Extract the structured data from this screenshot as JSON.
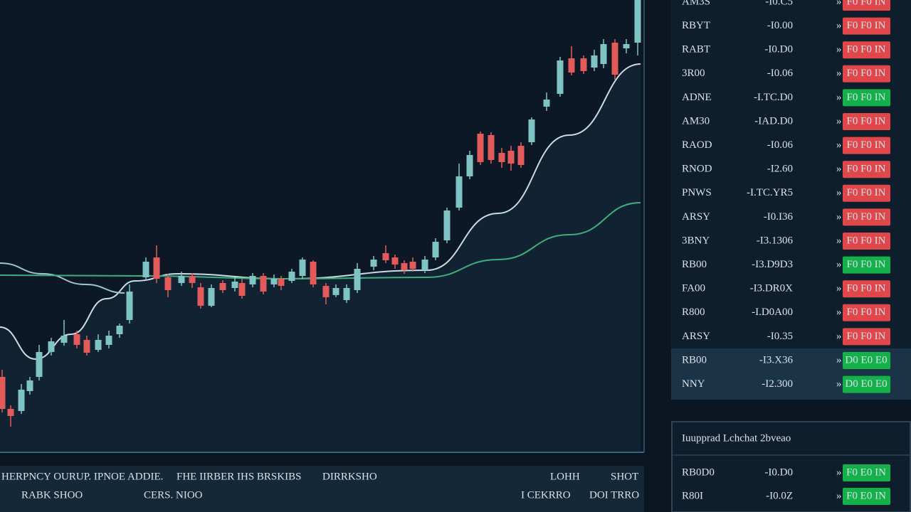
{
  "chart_data": {
    "type": "candlestick",
    "xlim": [
      0,
      905
    ],
    "ylim": [
      0,
      636
    ],
    "up_color": "#7fc3c4",
    "down_color": "#e25a5a",
    "x": [
      3,
      15,
      30,
      42,
      55,
      72,
      90,
      108,
      122,
      138,
      153,
      168,
      182,
      205,
      220,
      236,
      255,
      270,
      282,
      297,
      313,
      330,
      340,
      355,
      370,
      385,
      395,
      410,
      425,
      440,
      458,
      472,
      487,
      502,
      525,
      542,
      555,
      568,
      580,
      597,
      612,
      628,
      645,
      660,
      675,
      690,
      705,
      718,
      732,
      747,
      768,
      787,
      803,
      820,
      835,
      848,
      864,
      880,
      896
    ],
    "open": [
      106,
      61,
      58,
      86,
      106,
      141,
      154,
      166,
      158,
      144,
      151,
      166,
      186,
      246,
      274,
      246,
      238,
      248,
      232,
      206,
      238,
      231,
      238,
      236,
      248,
      236,
      244,
      241,
      248,
      268,
      234,
      221,
      214,
      228,
      261,
      280,
      274,
      266,
      268,
      256,
      274,
      298,
      344,
      388,
      448,
      446,
      421,
      424,
      431,
      436,
      486,
      504,
      554,
      554,
      541,
      546,
      576,
      568,
      576
    ],
    "close": [
      61,
      51,
      88,
      101,
      141,
      156,
      164,
      151,
      140,
      158,
      164,
      178,
      226,
      268,
      244,
      228,
      248,
      238,
      206,
      231,
      228,
      240,
      220,
      248,
      226,
      244,
      234,
      254,
      271,
      236,
      218,
      231,
      231,
      258,
      271,
      270,
      264,
      256,
      258,
      271,
      296,
      340,
      388,
      418,
      408,
      411,
      408,
      406,
      404,
      468,
      496,
      551,
      534,
      536,
      558,
      574,
      531,
      574,
      636
    ],
    "high": [
      116,
      66,
      96,
      106,
      151,
      161,
      186,
      171,
      164,
      166,
      171,
      181,
      236,
      274,
      291,
      251,
      254,
      252,
      238,
      236,
      242,
      246,
      244,
      252,
      252,
      250,
      248,
      258,
      274,
      270,
      238,
      236,
      236,
      266,
      276,
      291,
      278,
      270,
      274,
      276,
      301,
      344,
      406,
      424,
      451,
      450,
      428,
      431,
      436,
      471,
      506,
      556,
      571,
      558,
      566,
      581,
      581,
      581,
      636
    ],
    "low": [
      56,
      36,
      54,
      81,
      101,
      136,
      150,
      146,
      136,
      141,
      146,
      161,
      181,
      242,
      238,
      218,
      234,
      231,
      202,
      204,
      224,
      226,
      216,
      232,
      222,
      232,
      228,
      238,
      244,
      232,
      208,
      218,
      210,
      224,
      256,
      266,
      258,
      251,
      254,
      252,
      270,
      294,
      340,
      384,
      404,
      406,
      400,
      396,
      400,
      432,
      480,
      500,
      530,
      532,
      536,
      540,
      524,
      561,
      558
    ],
    "series": [
      {
        "color": "#c9dbe3",
        "x": [
          0,
          50,
          100,
          150,
          190,
          250,
          400,
          600,
          700,
          800,
          900
        ],
        "values": [
          176,
          131,
          166,
          216,
          241,
          251,
          244,
          256,
          336,
          446,
          546
        ]
      },
      {
        "color": "#9fc4cf",
        "x": [
          0,
          60,
          120,
          175
        ],
        "values": [
          266,
          251,
          236,
          224
        ]
      },
      {
        "color": "#3fae7a",
        "x": [
          0,
          200,
          400,
          600,
          700,
          800,
          900
        ],
        "values": [
          249,
          248,
          244,
          246,
          271,
          306,
          351
        ]
      }
    ]
  },
  "watchlist": {
    "rows": [
      {
        "symbol": "AM3S",
        "value": "-I0.C5",
        "value_color": "#d9e2ea",
        "button": "F0 F0 IN",
        "button_color": "#e0474a"
      },
      {
        "symbol": "RBYT",
        "value": "-I0.00",
        "value_color": "#d9e2ea",
        "button": "F0 F0 IN",
        "button_color": "#e0474a"
      },
      {
        "symbol": "RABT",
        "value": "-I0.D0",
        "value_color": "#d9e2ea",
        "button": "F0 F0 IN",
        "button_color": "#e0474a"
      },
      {
        "symbol": "3R00",
        "value": "-I0.06",
        "value_color": "#28c45a",
        "button": "F0 F0 IN",
        "button_color": "#e0474a"
      },
      {
        "symbol": "ADNE",
        "value": "-I.TC.D0",
        "value_color": "#d9e2ea",
        "button": "F0 F0 IN",
        "button_color": "#14b04a"
      },
      {
        "symbol": "AM30",
        "value": "-IAD.D0",
        "value_color": "#d9e2ea",
        "button": "F0 F0 IN",
        "button_color": "#e0474a"
      },
      {
        "symbol": "RAOD",
        "value": "-I0.06",
        "value_color": "#28c45a",
        "button": "F0 F0 IN",
        "button_color": "#e0474a"
      },
      {
        "symbol": "RNOD",
        "value": "-I2.60",
        "value_color": "#28c45a",
        "button": "F0 F0 IN",
        "button_color": "#e0474a"
      },
      {
        "symbol": "PNWS",
        "value": "-I.TC.YR5",
        "value_color": "#d9e2ea",
        "button": "F0 F0 IN",
        "button_color": "#e0474a"
      },
      {
        "symbol": "ARSY",
        "value": "-I0.I36",
        "value_color": "#28c45a",
        "button": "F0 F0 IN",
        "button_color": "#e0474a"
      },
      {
        "symbol": "3BNY",
        "value": "-I3.1306",
        "value_color": "#d9e2ea",
        "button": "F0 F0 IN",
        "button_color": "#e0474a"
      },
      {
        "symbol": "RB00",
        "value": "-I3.D9D3",
        "value_color": "#d9e2ea",
        "button": "F0 F0 IN",
        "button_color": "#14b04a"
      },
      {
        "symbol": "FA00",
        "value": "-I3.DR0X",
        "value_color": "#d9e2ea",
        "button": "F0 F0 IN",
        "button_color": "#e0474a"
      },
      {
        "symbol": "R800",
        "value": "-I.D0A00",
        "value_color": "#d9e2ea",
        "button": "F0 F0 IN",
        "button_color": "#e0474a"
      },
      {
        "symbol": "ARSY",
        "value": "-I0.35",
        "value_color": "#d9e2ea",
        "button": "F0 F0 IN",
        "button_color": "#e0474a"
      },
      {
        "symbol": "RB00",
        "value": "-I3.X36",
        "value_color": "#28c45a",
        "button": "D0 E0 E0",
        "button_color": "#14b04a"
      },
      {
        "symbol": "NNY",
        "value": "-I2.300",
        "value_color": "#28c45a",
        "button": "D0 E0 E0",
        "button_color": "#14b04a"
      }
    ]
  },
  "panel": {
    "title": "Iuupprad Lchchat 2bveao",
    "rows": [
      {
        "symbol": "RB0D0",
        "value": "-I0.D0",
        "value_color": "#d9e2ea",
        "button": "F0 E0 IN",
        "button_color": "#14b04a"
      },
      {
        "symbol": "R80I",
        "value": "-I0.0Z",
        "value_color": "#28c45a",
        "button": "F0 E0 IN",
        "button_color": "#14b04a"
      }
    ]
  },
  "status_bar": {
    "line1": [
      "HERPNCY OURUP. IPNOE ADDIE.",
      "FHE IIRBER IHS BRSKIBS",
      "DIRRKSHO",
      "LOHH",
      "SHOT"
    ],
    "line2": [
      "RABK SHOO",
      "CERS. NIOO",
      "I CEKRRO",
      "DOI TRRO"
    ]
  }
}
